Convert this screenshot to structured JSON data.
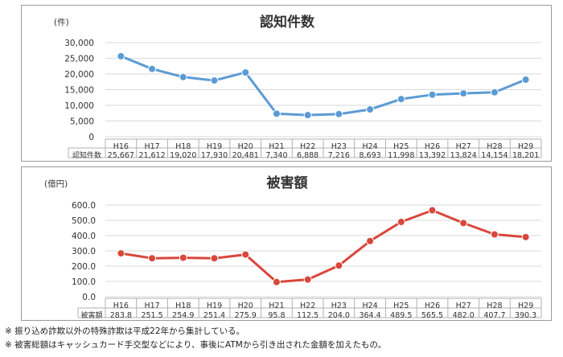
{
  "chart_data": [
    {
      "type": "line",
      "title": "認知件数",
      "unit_label": "(件)",
      "categories": [
        "H16",
        "H17",
        "H18",
        "H19",
        "H20",
        "H21",
        "H22",
        "H23",
        "H24",
        "H25",
        "H26",
        "H27",
        "H28",
        "H29"
      ],
      "series": [
        {
          "name": "認知件数",
          "values": [
            25667,
            21612,
            19020,
            17930,
            20481,
            7340,
            6888,
            7216,
            8693,
            11998,
            13392,
            13824,
            14154,
            18201
          ],
          "labels": [
            "25,667",
            "21,612",
            "19,020",
            "17,930",
            "20,481",
            "7,340",
            "6,888",
            "7,216",
            "8,693",
            "11,998",
            "13,392",
            "13,824",
            "14,154",
            "18,201"
          ]
        }
      ],
      "ylim": [
        0,
        30000
      ],
      "yticks": [
        "0",
        "5,000",
        "10,000",
        "15,000",
        "20,000",
        "25,000",
        "30,000"
      ],
      "grid": true,
      "color": "#5b9bd5"
    },
    {
      "type": "line",
      "title": "被害額",
      "unit_label": "(億円)",
      "categories": [
        "H16",
        "H17",
        "H18",
        "H19",
        "H20",
        "H21",
        "H22",
        "H23",
        "H24",
        "H25",
        "H26",
        "H27",
        "H28",
        "H29"
      ],
      "series": [
        {
          "name": "被害額",
          "values": [
            283.8,
            251.5,
            254.9,
            251.4,
            275.9,
            95.8,
            112.5,
            204.0,
            364.4,
            489.5,
            565.5,
            482.0,
            407.7,
            390.3
          ],
          "labels": [
            "283.8",
            "251.5",
            "254.9",
            "251.4",
            "275.9",
            "95.8",
            "112.5",
            "204.0",
            "364.4",
            "489.5",
            "565.5",
            "482.0",
            "407.7",
            "390.3"
          ]
        }
      ],
      "ylim": [
        0,
        600
      ],
      "yticks": [
        "0.0",
        "100.0",
        "200.0",
        "300.0",
        "400.0",
        "500.0",
        "600.0"
      ],
      "grid": true,
      "color": "#d9473b"
    }
  ],
  "notes": [
    "※ 振り込め詐欺以外の特殊詐欺は平成22年から集計している。",
    "※ 被害総額はキャッシュカード手交型などにより、事後にATMから引き出された金額を加えたもの。"
  ]
}
